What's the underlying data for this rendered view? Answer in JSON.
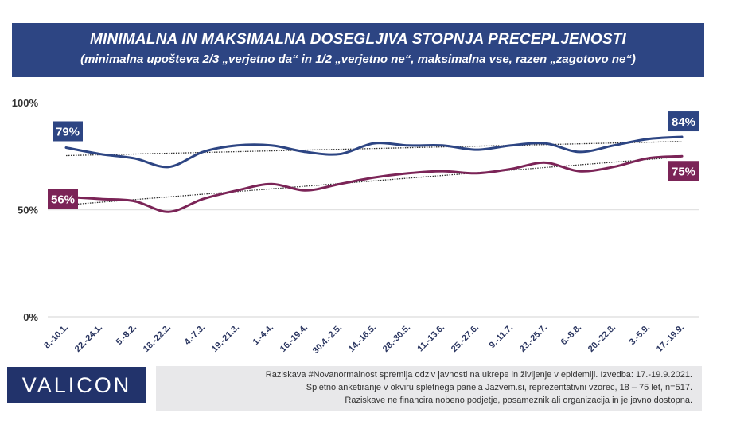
{
  "header": {
    "title": "MINIMALNA IN MAKSIMALNA DOSEGLJIVA STOPNJA PRECEPLJENOSTI",
    "subtitle": "(minimalna upošteva 2/3 „verjetno da“ in 1/2 „verjetno ne“, maksimalna vse,  razen „zagotovo ne“)"
  },
  "chart_data": {
    "type": "line",
    "categories": [
      "8.-10.1.",
      "22.-24.1.",
      "5.-8.2.",
      "18.-22.2.",
      "4.-7.3.",
      "19.-21.3.",
      "1.-4.4.",
      "16.-19.4.",
      "30.4.-2.5.",
      "14.-16.5.",
      "28.-30.5.",
      "11.-13.6.",
      "25.-27.6.",
      "9.-11.7.",
      "23.-25.7.",
      "6.-8.8.",
      "20.-22.8.",
      "3.-5.9.",
      "17.-19.9."
    ],
    "yticks": [
      "0%",
      "50%",
      "100%"
    ],
    "ylim": [
      0,
      100
    ],
    "grid": true,
    "trendlines": "linear, dotted",
    "series": [
      {
        "key": "max",
        "color": "#2d4583",
        "values": [
          79,
          76,
          74,
          70,
          77,
          80,
          80,
          77,
          76,
          81,
          80,
          80,
          78,
          80,
          81,
          77,
          80,
          83,
          84
        ],
        "start_label": "79%",
        "end_label": "84%"
      },
      {
        "key": "min",
        "color": "#7b2457",
        "values": [
          56,
          55,
          54,
          49,
          55,
          59,
          62,
          59,
          62,
          65,
          67,
          68,
          67,
          69,
          72,
          68,
          70,
          74,
          75
        ],
        "start_label": "56%",
        "end_label": "75%"
      }
    ]
  },
  "logo": "VALICON",
  "footer": [
    "Raziskava #Novanormalnost spremlja odziv javnosti na ukrepe in življenje v epidemiji. Izvedba: 17.-19.9.2021.",
    "Spletno anketiranje v okviru spletnega panela Jazvem.si, reprezentativni vzorec, 18 – 75 let, n=517.",
    "Raziskave ne financira nobeno podjetje, posameznik ali organizacija in je javno dostopna."
  ]
}
